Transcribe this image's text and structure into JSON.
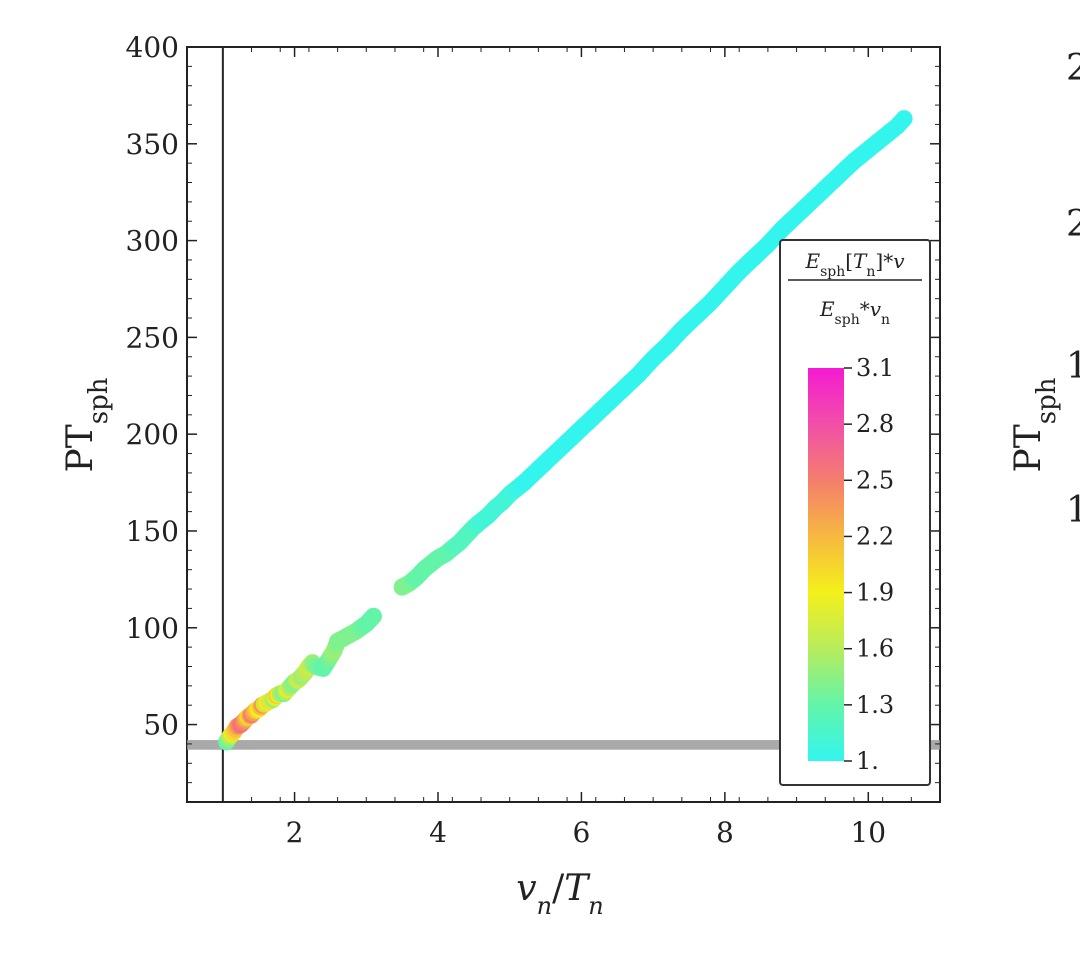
{
  "chart_data": {
    "type": "scatter",
    "xlabel": {
      "main": "v",
      "sub1": "n",
      "slash": "/",
      "main2": "T",
      "sub2": "n"
    },
    "ylabel": {
      "main": "PT",
      "sub": "sph"
    },
    "xlim": [
      0.5,
      11.0
    ],
    "ylim": [
      10,
      400
    ],
    "x_ticks": [
      2,
      4,
      6,
      8,
      10
    ],
    "y_ticks": [
      50,
      100,
      150,
      200,
      250,
      300,
      350,
      400
    ],
    "vertical_line_x": 1.0,
    "horizontal_band": [
      37,
      42
    ],
    "grid": false,
    "colorbar": {
      "title_numerator": {
        "main": "E",
        "sub": "sph",
        "bracket_open": "[",
        "var": "T",
        "var_sub": "n",
        "bracket_close": "]",
        "suffix": "*v"
      },
      "title_denominator": {
        "main": "E",
        "sub": "sph",
        "suffix": "*v",
        "suffix_sub": "n"
      },
      "ticks": [
        "3.1",
        "2.8",
        "2.5",
        "2.2",
        "1.9",
        "1.6",
        "1.3",
        "1."
      ],
      "range": [
        1.0,
        3.1
      ],
      "placement": "right-inside",
      "colors": [
        "#33f5ee",
        "#62f5a8",
        "#b8ec5c",
        "#f4f01a",
        "#f7b840",
        "#f47e6c",
        "#f24fa8",
        "#f41ad2"
      ]
    },
    "series": [
      {
        "points": [
          [
            1.05,
            41,
            1.3
          ],
          [
            1.1,
            44,
            1.6
          ],
          [
            1.15,
            46,
            2.0
          ],
          [
            1.2,
            49,
            2.3
          ],
          [
            1.25,
            50,
            2.6
          ],
          [
            1.3,
            52,
            2.4
          ],
          [
            1.35,
            54,
            2.0
          ],
          [
            1.4,
            55,
            2.5
          ],
          [
            1.45,
            57,
            2.2
          ],
          [
            1.5,
            58,
            1.9
          ],
          [
            1.55,
            60,
            2.4
          ],
          [
            1.6,
            61,
            1.7
          ],
          [
            1.65,
            62,
            2.0
          ],
          [
            1.7,
            63,
            1.5
          ],
          [
            1.75,
            65,
            2.1
          ],
          [
            1.8,
            66,
            1.6
          ],
          [
            1.85,
            66,
            1.4
          ],
          [
            1.9,
            68,
            1.8
          ],
          [
            1.95,
            70,
            1.5
          ],
          [
            2.0,
            72,
            1.4
          ],
          [
            2.05,
            73,
            1.7
          ],
          [
            2.1,
            75,
            1.5
          ],
          [
            2.15,
            77,
            1.6
          ],
          [
            2.2,
            80,
            1.7
          ],
          [
            2.25,
            82,
            1.5
          ],
          [
            2.3,
            80,
            1.4
          ],
          [
            2.4,
            79,
            1.3
          ],
          [
            2.45,
            82,
            1.3
          ],
          [
            2.55,
            88,
            1.5
          ],
          [
            2.6,
            93,
            1.4
          ],
          [
            2.85,
            98,
            1.4
          ],
          [
            3.0,
            102,
            1.3
          ],
          [
            3.1,
            106,
            1.3
          ],
          [
            3.5,
            121,
            1.4
          ],
          [
            3.6,
            123,
            1.4
          ],
          [
            3.7,
            126,
            1.3
          ],
          [
            3.8,
            130,
            1.3
          ],
          [
            3.9,
            133,
            1.3
          ],
          [
            4.0,
            136,
            1.3
          ],
          [
            4.1,
            138,
            1.3
          ],
          [
            4.2,
            141,
            1.25
          ],
          [
            4.3,
            144,
            1.2
          ],
          [
            4.4,
            148,
            1.2
          ],
          [
            4.5,
            152,
            1.2
          ],
          [
            4.6,
            155,
            1.1
          ],
          [
            4.7,
            158,
            1.1
          ],
          [
            4.8,
            162,
            1.1
          ],
          [
            4.9,
            165,
            1.1
          ],
          [
            5.0,
            169,
            1.1
          ],
          [
            5.2,
            175,
            1.0
          ],
          [
            5.4,
            182,
            1.0
          ],
          [
            5.6,
            189,
            1.0
          ],
          [
            5.8,
            196,
            1.0
          ],
          [
            6.0,
            203,
            1.0
          ],
          [
            6.2,
            210,
            1.0
          ],
          [
            6.4,
            217,
            1.0
          ],
          [
            6.6,
            224,
            1.0
          ],
          [
            6.8,
            231,
            1.0
          ],
          [
            7.0,
            239,
            1.0
          ],
          [
            7.2,
            246,
            1.0
          ],
          [
            7.4,
            254,
            1.0
          ],
          [
            7.6,
            261,
            1.0
          ],
          [
            7.8,
            268,
            1.0
          ],
          [
            8.0,
            276,
            1.0
          ],
          [
            8.2,
            284,
            1.0
          ],
          [
            8.4,
            291,
            1.0
          ],
          [
            8.6,
            298,
            1.0
          ],
          [
            8.8,
            306,
            1.0
          ],
          [
            9.0,
            313,
            1.0
          ],
          [
            9.2,
            320,
            1.0
          ],
          [
            9.4,
            327,
            1.0
          ],
          [
            9.6,
            334,
            1.0
          ],
          [
            9.8,
            341,
            1.0
          ],
          [
            10.0,
            347,
            1.0
          ],
          [
            10.2,
            353,
            1.0
          ],
          [
            10.4,
            359,
            1.0
          ],
          [
            10.5,
            363,
            1.0
          ]
        ]
      }
    ],
    "clipped_right_panel": {
      "ylabel": {
        "main": "PT",
        "sub": "sph"
      },
      "tick_glyphs": [
        "2",
        "2",
        "1",
        "1"
      ]
    }
  }
}
